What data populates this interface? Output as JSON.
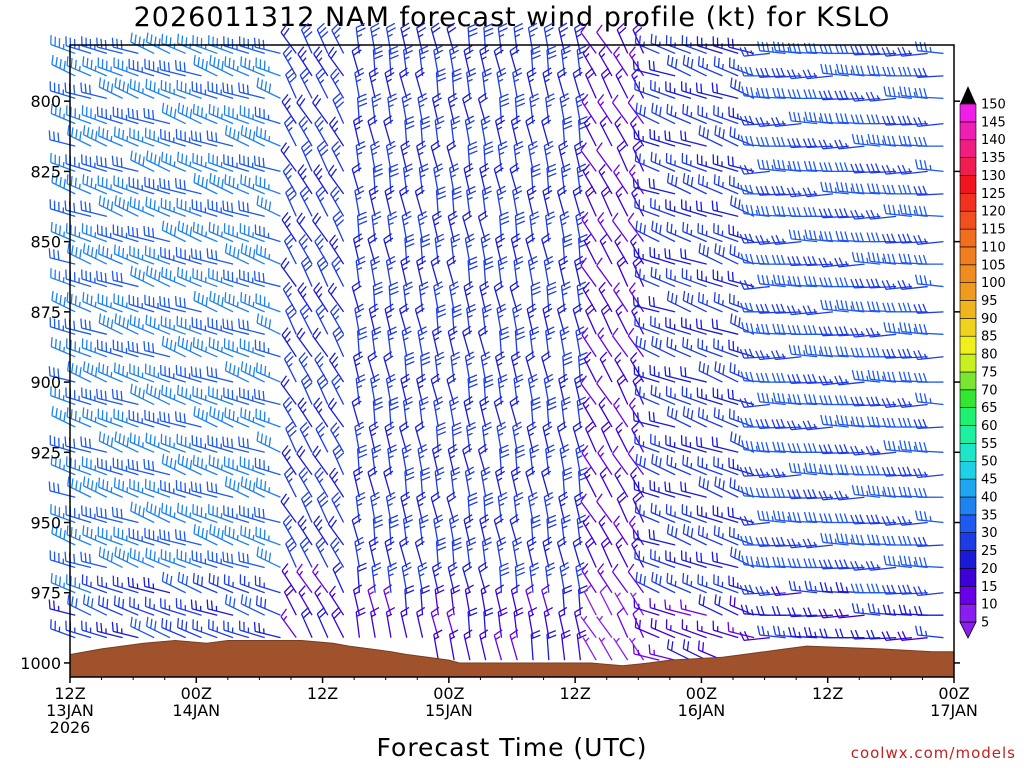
{
  "chart_data": {
    "type": "wind-barb time-height profile",
    "title": "2026011312 NAM forecast wind profile (kt) for KSLO",
    "xlabel": "Forecast Time (UTC)",
    "ylabel": "",
    "yaxis": {
      "min": 780,
      "max": 1005,
      "ticks": [
        800,
        825,
        850,
        875,
        900,
        925,
        950,
        975,
        1000
      ]
    },
    "xaxis": {
      "start_hour": 0,
      "end_hour": 84,
      "ticks": [
        {
          "hour": 0,
          "lines": [
            "12Z",
            "13JAN",
            "2026"
          ]
        },
        {
          "hour": 12,
          "lines": [
            "00Z",
            "14JAN"
          ]
        },
        {
          "hour": 24,
          "lines": [
            "12Z"
          ]
        },
        {
          "hour": 36,
          "lines": [
            "00Z",
            "15JAN"
          ]
        },
        {
          "hour": 48,
          "lines": [
            "12Z"
          ]
        },
        {
          "hour": 60,
          "lines": [
            "00Z",
            "16JAN"
          ]
        },
        {
          "hour": 72,
          "lines": [
            "12Z"
          ]
        },
        {
          "hour": 84,
          "lines": [
            "00Z",
            "17JAN"
          ]
        }
      ]
    },
    "colorbar": {
      "levels": [
        5,
        10,
        15,
        20,
        25,
        30,
        35,
        40,
        45,
        50,
        55,
        60,
        65,
        70,
        75,
        80,
        85,
        90,
        95,
        100,
        105,
        110,
        115,
        120,
        125,
        130,
        135,
        140,
        145,
        150
      ],
      "colors": [
        "#8a1ef0",
        "#6a00e8",
        "#3c00d8",
        "#1a1ad8",
        "#1e3ce6",
        "#1e5af0",
        "#1e82f0",
        "#1ea6f0",
        "#1ed2e6",
        "#1ee6c8",
        "#1ef0a0",
        "#1ef070",
        "#32e632",
        "#7ae632",
        "#c8f01e",
        "#f0f01e",
        "#f0d21e",
        "#f0b41e",
        "#f09b1e",
        "#f08c1e",
        "#f07d1e",
        "#f06e1e",
        "#f0501e",
        "#f0321e",
        "#f0141e",
        "#f01e50",
        "#f01e82",
        "#f01eb4",
        "#f01ee6",
        "#e61ef0"
      ]
    },
    "surface_pressure": [
      {
        "hour": 0,
        "p": 997
      },
      {
        "hour": 3,
        "p": 995
      },
      {
        "hour": 7,
        "p": 993
      },
      {
        "hour": 10,
        "p": 992
      },
      {
        "hour": 13,
        "p": 993
      },
      {
        "hour": 15,
        "p": 992
      },
      {
        "hour": 22,
        "p": 992
      },
      {
        "hour": 25,
        "p": 993
      },
      {
        "hour": 26.5,
        "p": 994
      },
      {
        "hour": 28.5,
        "p": 995
      },
      {
        "hour": 30.5,
        "p": 996
      },
      {
        "hour": 32,
        "p": 997
      },
      {
        "hour": 34,
        "p": 998
      },
      {
        "hour": 36,
        "p": 999
      },
      {
        "hour": 37,
        "p": 1000
      },
      {
        "hour": 49.5,
        "p": 1000
      },
      {
        "hour": 52.5,
        "p": 1001
      },
      {
        "hour": 55,
        "p": 1000
      },
      {
        "hour": 57,
        "p": 999
      },
      {
        "hour": 62,
        "p": 998
      },
      {
        "hour": 64,
        "p": 997
      },
      {
        "hour": 66,
        "p": 996
      },
      {
        "hour": 68,
        "p": 995
      },
      {
        "hour": 70,
        "p": 994
      },
      {
        "hour": 77,
        "p": 995
      },
      {
        "hour": 82,
        "p": 996
      },
      {
        "hour": 84,
        "p": 996
      }
    ],
    "barb_grid": {
      "hours_every": 1.5,
      "levels": [
        783,
        791,
        799,
        808,
        816,
        825,
        833,
        841,
        850,
        858,
        866,
        875,
        883,
        891,
        900,
        908,
        916,
        925,
        933,
        941,
        950,
        958,
        966,
        975,
        983,
        991,
        999
      ],
      "regimes": [
        {
          "from_hour": 0,
          "to_hour": 21,
          "direction_deg": 290,
          "speed_kt": 35
        },
        {
          "from_hour": 21,
          "to_hour": 27,
          "direction_deg": 330,
          "speed_kt": 25
        },
        {
          "from_hour": 27,
          "to_hour": 50,
          "direction_deg": 350,
          "speed_kt": 25
        },
        {
          "from_hour": 50,
          "to_hour": 56,
          "direction_deg": 330,
          "speed_kt": 15
        },
        {
          "from_hour": 56,
          "to_hour": 66,
          "direction_deg": 290,
          "speed_kt": 25
        },
        {
          "from_hour": 66,
          "to_hour": 84,
          "direction_deg": 270,
          "speed_kt": 30
        }
      ]
    }
  },
  "labels": {
    "credit": "coolwx.com/models"
  }
}
